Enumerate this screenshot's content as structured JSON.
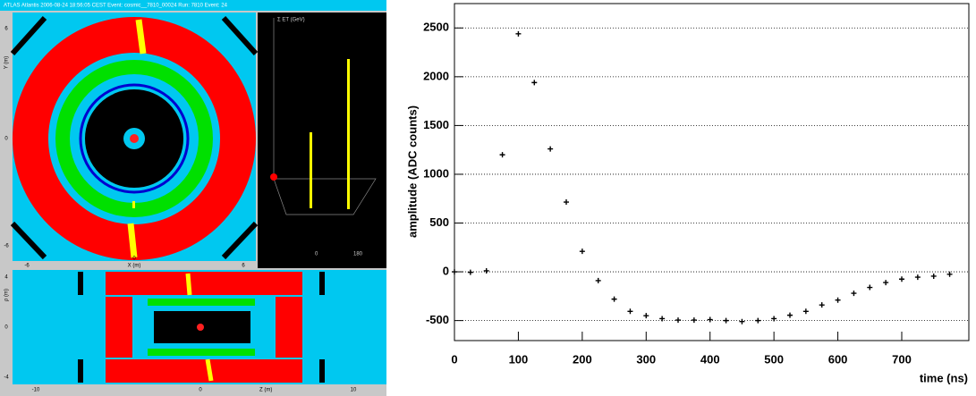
{
  "chart_data": {
    "type": "scatter",
    "y_label": "amplitude (ADC counts)",
    "x_label": "time (ns)",
    "x": [
      0,
      25,
      50,
      75,
      100,
      125,
      150,
      175,
      200,
      225,
      250,
      275,
      300,
      325,
      350,
      375,
      400,
      425,
      450,
      475,
      500,
      525,
      550,
      575,
      600,
      625,
      650,
      675,
      700,
      725,
      750,
      775
    ],
    "values": [
      0,
      -5,
      10,
      1200,
      2440,
      1940,
      1260,
      715,
      210,
      -90,
      -280,
      -405,
      -450,
      -480,
      -495,
      -495,
      -490,
      -500,
      -510,
      -500,
      -480,
      -445,
      -405,
      -340,
      -290,
      -220,
      -160,
      -110,
      -75,
      -55,
      -45,
      -25
    ],
    "color": "#000000",
    "xlim": [
      0,
      805
    ],
    "xticks": [
      0,
      100,
      200,
      300,
      400,
      500,
      600,
      700
    ],
    "ylim": [
      -705,
      2750
    ],
    "yticks": [
      -500,
      0,
      500,
      1000,
      1500,
      2000,
      2500
    ],
    "grid": true
  },
  "event_display": {
    "header": "ATLAS Atlantis   2006-08-24 18:56:05 CEST   Event: cosmic__7810_00024   Run: 7810   Event: 24",
    "xy_view": {
      "x_label": "X (m)",
      "y_label": "Y (m)",
      "x_ticks": [
        "-6",
        "0",
        "6"
      ],
      "y_ticks": [
        "6",
        "0",
        "-6"
      ]
    },
    "lego_view": {
      "label": "Σ ET (GeV)",
      "ticks": [
        "0",
        "180"
      ]
    },
    "rz_view": {
      "x_label": "Z (m)",
      "y_label": "ρ (m)",
      "x_ticks": [
        "-10",
        "0",
        "10"
      ],
      "y_ticks": [
        "4",
        "0",
        "-4"
      ]
    }
  }
}
